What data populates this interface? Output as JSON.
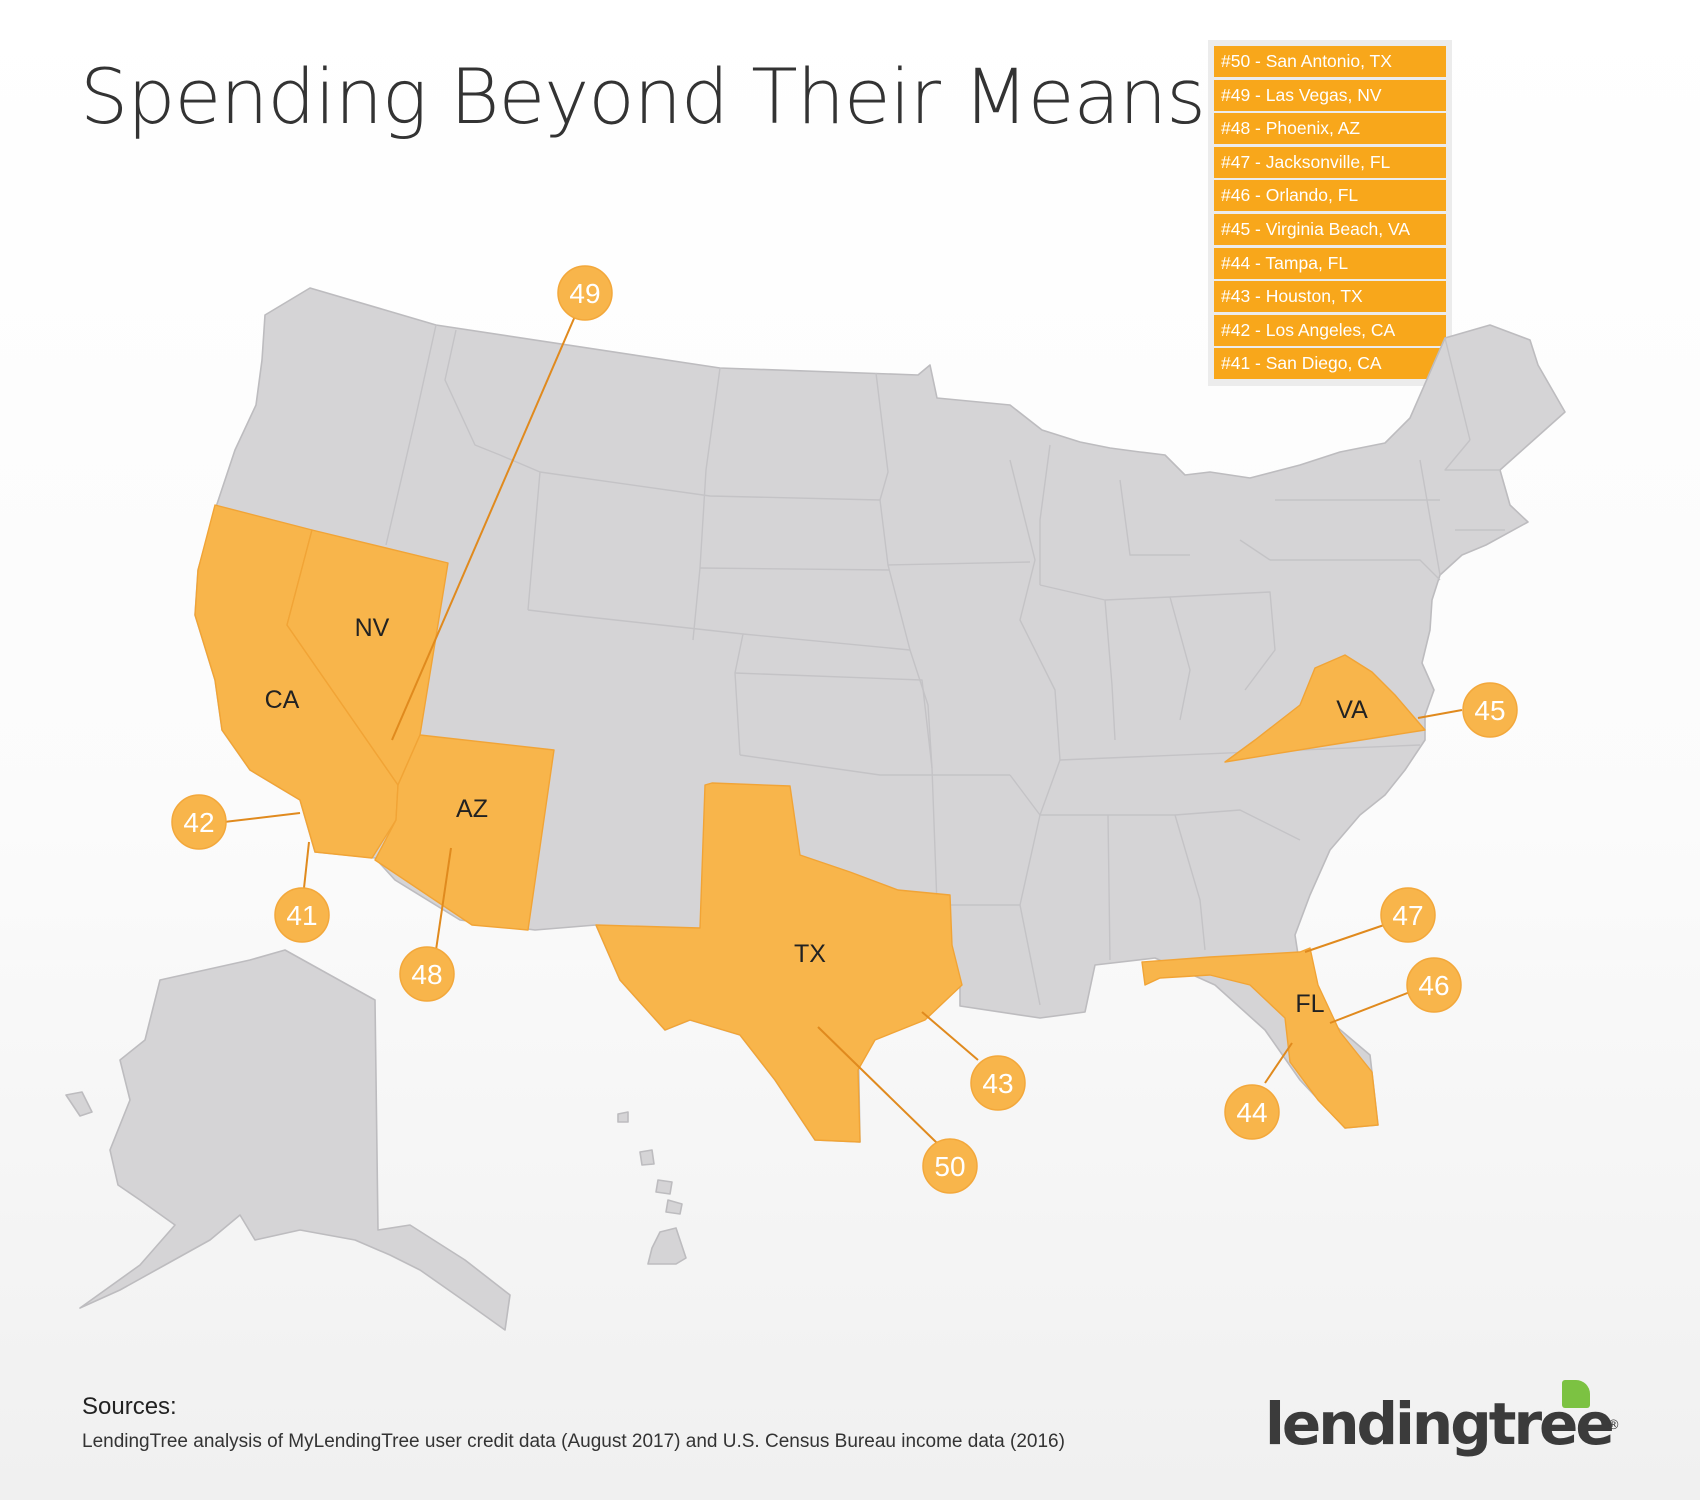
{
  "title": "Spending Beyond Their Means",
  "legend": [
    "#50 - San Antonio, TX",
    "#49 - Las Vegas, NV",
    "#48 - Phoenix, AZ",
    "#47 - Jacksonville, FL",
    "#46 - Orlando, FL",
    "#45 - Virginia Beach, VA",
    "#44 - Tampa, FL",
    "#43 - Houston, TX",
    "#42 - Los Angeles, CA",
    "#41 - San Diego, CA"
  ],
  "states": {
    "ca": "CA",
    "nv": "NV",
    "az": "AZ",
    "tx": "TX",
    "va": "VA",
    "fl": "FL"
  },
  "markers": {
    "m49": "49",
    "m42": "42",
    "m41": "41",
    "m48": "48",
    "m50": "50",
    "m43": "43",
    "m45": "45",
    "m47": "47",
    "m46": "46",
    "m44": "44"
  },
  "sources": {
    "heading": "Sources:",
    "text": "LendingTree analysis of MyLendingTree user credit data (August 2017) and U.S. Census Bureau income data (2016)"
  },
  "logo": {
    "text": "lendingtree",
    "registered": "®"
  },
  "colors": {
    "highlight": "#f8b54b",
    "marker": "#f8b54b",
    "legend": "#f8a71b",
    "base_state": "#d5d4d6",
    "logo_green": "#7cc242"
  }
}
